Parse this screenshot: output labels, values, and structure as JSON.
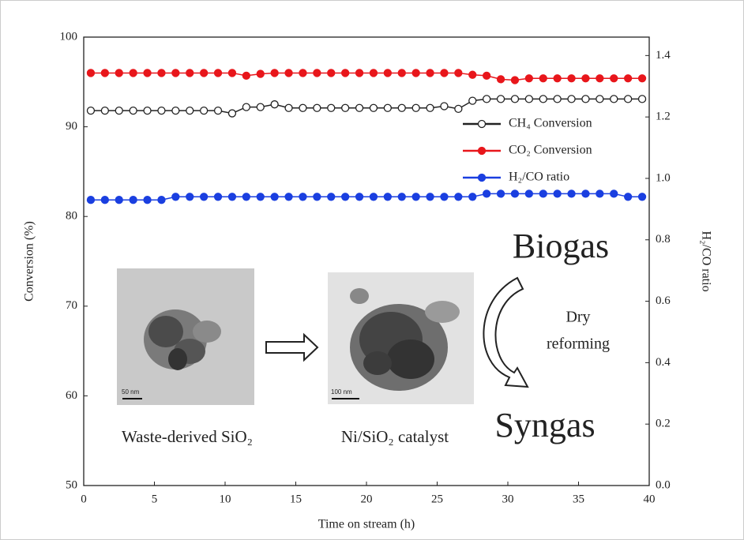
{
  "chart_data": {
    "type": "line",
    "xlabel": "Time on stream (h)",
    "ylabel": "Conversion (%)",
    "y2label": "H₂/CO ratio",
    "xlim": [
      0,
      40
    ],
    "xticks": [
      0,
      5,
      10,
      15,
      20,
      25,
      30,
      35,
      40
    ],
    "ylim": [
      50,
      100
    ],
    "yticks": [
      50,
      60,
      70,
      80,
      90,
      100
    ],
    "y2lim": [
      0,
      1.46
    ],
    "y2ticks": [
      {
        "value": 0,
        "label": "0.0"
      },
      0.2,
      0.4,
      0.6,
      0.8,
      {
        "value": 1,
        "label": "1.0"
      },
      1.2,
      1.4
    ],
    "x": [
      0.5,
      1.5,
      2.5,
      3.5,
      4.5,
      5.5,
      6.5,
      7.5,
      8.5,
      9.5,
      10.5,
      11.5,
      12.5,
      13.5,
      14.5,
      15.5,
      16.5,
      17.5,
      18.5,
      19.5,
      20.5,
      21.5,
      22.5,
      23.5,
      24.5,
      25.5,
      26.5,
      27.5,
      28.5,
      29.5,
      30.5,
      31.5,
      32.5,
      33.5,
      34.5,
      35.5,
      36.5,
      37.5,
      38.5,
      39.5
    ],
    "series": [
      {
        "name": "CH₄ Conversion",
        "color": "#222222",
        "marker": "hollow",
        "values": [
          91.8,
          91.8,
          91.8,
          91.8,
          91.8,
          91.8,
          91.8,
          91.8,
          91.8,
          91.8,
          91.5,
          92.2,
          92.2,
          92.5,
          92.1,
          92.1,
          92.1,
          92.1,
          92.1,
          92.1,
          92.1,
          92.1,
          92.1,
          92.1,
          92.1,
          92.3,
          92.0,
          92.9,
          93.1,
          93.1,
          93.1,
          93.1,
          93.1,
          93.1,
          93.1,
          93.1,
          93.1,
          93.1,
          93.1,
          93.1
        ]
      },
      {
        "name": "CO₂ Conversion",
        "color": "#e8161b",
        "marker": "filled",
        "values": [
          96.0,
          96.0,
          96.0,
          96.0,
          96.0,
          96.0,
          96.0,
          96.0,
          96.0,
          96.0,
          96.0,
          95.7,
          95.9,
          96.0,
          96.0,
          96.0,
          96.0,
          96.0,
          96.0,
          96.0,
          96.0,
          96.0,
          96.0,
          96.0,
          96.0,
          96.0,
          96.0,
          95.8,
          95.7,
          95.3,
          95.2,
          95.4,
          95.4,
          95.4,
          95.4,
          95.4,
          95.4,
          95.4,
          95.4,
          95.4
        ]
      },
      {
        "name": "H₂/CO ratio",
        "color": "#1a3fe0",
        "marker": "filled",
        "axis": "y2",
        "values": [
          0.93,
          0.93,
          0.93,
          0.93,
          0.93,
          0.93,
          0.94,
          0.94,
          0.94,
          0.94,
          0.94,
          0.94,
          0.94,
          0.94,
          0.94,
          0.94,
          0.94,
          0.94,
          0.94,
          0.94,
          0.94,
          0.94,
          0.94,
          0.94,
          0.94,
          0.94,
          0.94,
          0.94,
          0.95,
          0.95,
          0.95,
          0.95,
          0.95,
          0.95,
          0.95,
          0.95,
          0.95,
          0.95,
          0.94,
          0.94
        ]
      }
    ],
    "annotations": {
      "feed": "Biogas",
      "process_1": "Dry",
      "process_2": "reforming",
      "product": "Syngas",
      "support": "Waste-derived SiO₂",
      "catalyst": "Ni/SiO₂ catalyst",
      "scale_support": "50 nm",
      "scale_catalyst": "100 nm"
    }
  }
}
